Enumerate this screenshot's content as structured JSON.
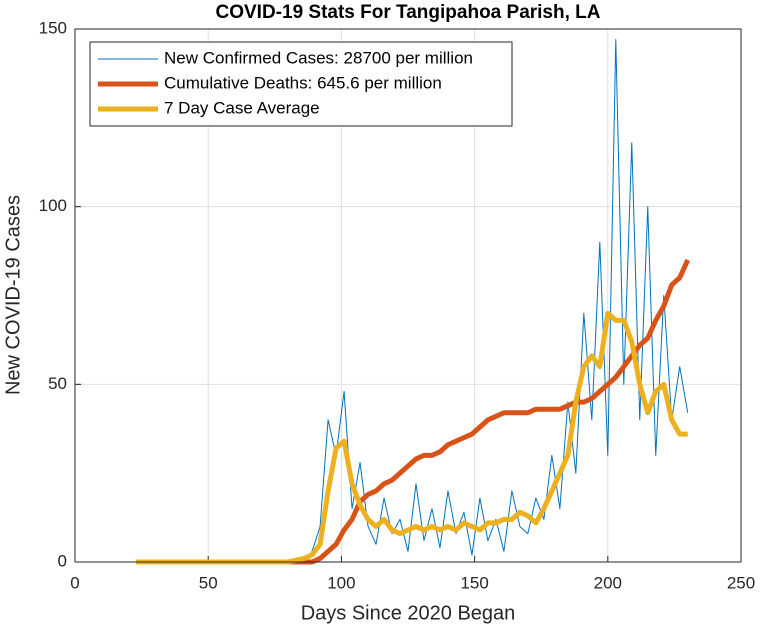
{
  "chart_data": {
    "type": "line",
    "title": "COVID-19 Stats For Tangipahoa Parish, LA",
    "x_label": "Days Since 2020 Began",
    "y_label": "New COVID-19 Cases",
    "xlim": [
      0,
      250
    ],
    "xticks": [
      0,
      50,
      100,
      150,
      200,
      250
    ],
    "ylim": [
      0,
      150
    ],
    "yticks": [
      0,
      50,
      100,
      150
    ],
    "grid": true,
    "legend": "northwest",
    "x": [
      23,
      26,
      29,
      32,
      35,
      38,
      41,
      44,
      47,
      50,
      53,
      56,
      59,
      62,
      65,
      68,
      71,
      74,
      77,
      80,
      83,
      86,
      89,
      92,
      95,
      98,
      101,
      104,
      107,
      110,
      113,
      116,
      119,
      122,
      125,
      128,
      131,
      134,
      137,
      140,
      143,
      146,
      149,
      152,
      155,
      158,
      161,
      164,
      167,
      170,
      173,
      176,
      179,
      182,
      185,
      188,
      191,
      194,
      197,
      200,
      203,
      206,
      209,
      212,
      215,
      218,
      221,
      224,
      227,
      230
    ],
    "series": [
      {
        "name": "New Confirmed Cases: 28700 per million",
        "color": "#0072BD",
        "width": 1,
        "values": [
          0,
          0,
          0,
          0,
          0,
          0,
          0,
          0,
          0,
          0,
          0,
          0,
          0,
          0,
          0,
          0,
          0,
          0,
          0,
          0,
          1,
          0,
          3,
          10,
          40,
          30,
          48,
          15,
          28,
          10,
          5,
          18,
          8,
          12,
          3,
          22,
          6,
          15,
          4,
          20,
          8,
          14,
          2,
          18,
          6,
          12,
          3,
          20,
          10,
          8,
          18,
          12,
          30,
          15,
          45,
          25,
          70,
          40,
          90,
          30,
          147,
          50,
          118,
          40,
          100,
          30,
          75,
          40,
          55,
          42
        ]
      },
      {
        "name": "Cumulative Deaths: 645.6 per million",
        "color": "#D95319",
        "width": 5,
        "values": [
          0,
          0,
          0,
          0,
          0,
          0,
          0,
          0,
          0,
          0,
          0,
          0,
          0,
          0,
          0,
          0,
          0,
          0,
          0,
          0,
          0,
          0,
          0,
          1,
          3,
          5,
          9,
          12,
          17,
          19,
          20,
          22,
          23,
          25,
          27,
          29,
          30,
          30,
          31,
          33,
          34,
          35,
          36,
          38,
          40,
          41,
          42,
          42,
          42,
          42,
          43,
          43,
          43,
          43,
          44,
          45,
          45,
          46,
          48,
          50,
          52,
          55,
          58,
          61,
          63,
          68,
          72,
          78,
          80,
          85
        ]
      },
      {
        "name": "7 Day Case Average",
        "color": "#EDB120",
        "width": 5,
        "values": [
          0,
          0,
          0,
          0,
          0,
          0,
          0,
          0,
          0,
          0,
          0,
          0,
          0,
          0,
          0,
          0,
          0,
          0,
          0,
          0,
          0.5,
          1,
          2,
          5,
          20,
          32,
          34,
          22,
          16,
          12,
          10,
          12,
          9,
          8,
          9,
          10,
          9,
          10,
          9,
          10,
          9,
          11,
          10,
          9,
          11,
          11,
          12,
          12,
          14,
          13,
          11,
          15,
          20,
          25,
          30,
          45,
          55,
          58,
          55,
          70,
          68,
          68,
          62,
          50,
          42,
          48,
          50,
          40,
          36,
          36
        ]
      }
    ]
  }
}
